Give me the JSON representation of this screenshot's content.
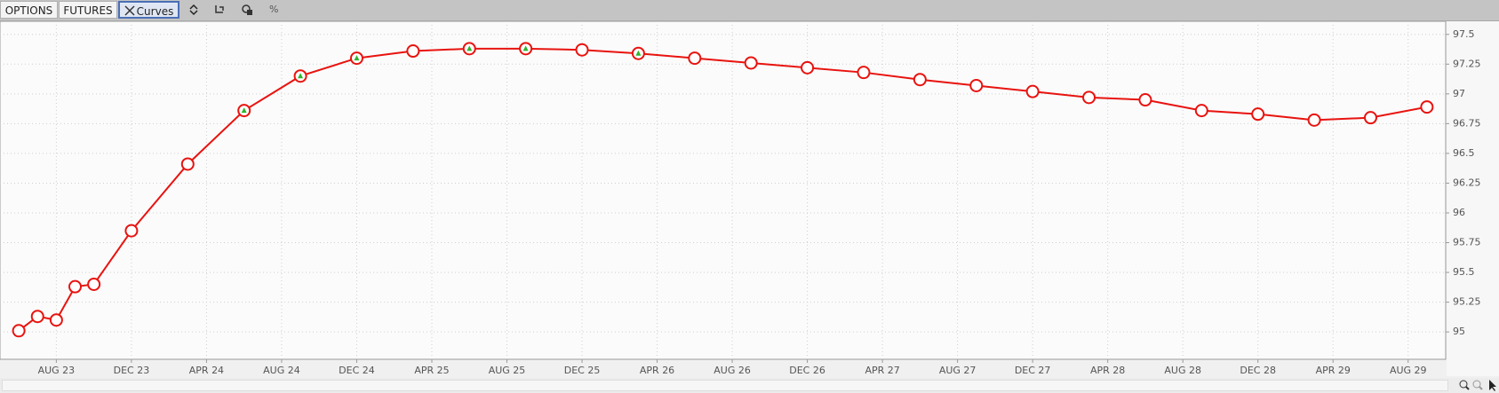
{
  "toolbar": {
    "buttons": [
      "OPTIONS",
      "FUTURES",
      "Curves"
    ],
    "percent": "%"
  },
  "chart_data": {
    "type": "line",
    "x": [
      "2023-06",
      "2023-07",
      "2023-08",
      "2023-09",
      "2023-10",
      "2023-12",
      "2024-03",
      "2024-06",
      "2024-09",
      "2024-12",
      "2025-03",
      "2025-06",
      "2025-09",
      "2025-12",
      "2026-03",
      "2026-06",
      "2026-09",
      "2026-12",
      "2027-03",
      "2027-06",
      "2027-09",
      "2027-12",
      "2028-03",
      "2028-06",
      "2028-09",
      "2028-12",
      "2029-03",
      "2029-06",
      "2029-09"
    ],
    "series": [
      {
        "color": "#e8130f",
        "values": [
          95.01,
          95.13,
          95.1,
          95.38,
          95.4,
          95.85,
          96.41,
          96.86,
          97.15,
          97.3,
          97.36,
          97.38,
          97.38,
          97.37,
          97.34,
          97.3,
          97.26,
          97.22,
          97.18,
          97.12,
          97.07,
          97.02,
          96.97,
          96.95,
          96.86,
          96.83,
          96.78,
          96.8,
          96.89
        ],
        "flagged": [
          false,
          false,
          false,
          false,
          false,
          false,
          false,
          true,
          true,
          true,
          false,
          true,
          true,
          false,
          true,
          false,
          false,
          false,
          false,
          false,
          false,
          false,
          false,
          false,
          false,
          false,
          false,
          false,
          false
        ]
      }
    ],
    "xlim": [
      "2023-05",
      "2029-10"
    ],
    "xticks": [
      {
        "value": "2023-08",
        "label": "AUG 23"
      },
      {
        "value": "2023-12",
        "label": "DEC 23"
      },
      {
        "value": "2024-04",
        "label": "APR 24"
      },
      {
        "value": "2024-08",
        "label": "AUG 24"
      },
      {
        "value": "2024-12",
        "label": "DEC 24"
      },
      {
        "value": "2025-04",
        "label": "APR 25"
      },
      {
        "value": "2025-08",
        "label": "AUG 25"
      },
      {
        "value": "2025-12",
        "label": "DEC 25"
      },
      {
        "value": "2026-04",
        "label": "APR 26"
      },
      {
        "value": "2026-08",
        "label": "AUG 26"
      },
      {
        "value": "2026-12",
        "label": "DEC 26"
      },
      {
        "value": "2027-04",
        "label": "APR 27"
      },
      {
        "value": "2027-08",
        "label": "AUG 27"
      },
      {
        "value": "2027-12",
        "label": "DEC 27"
      },
      {
        "value": "2028-04",
        "label": "APR 28"
      },
      {
        "value": "2028-08",
        "label": "AUG 28"
      },
      {
        "value": "2028-12",
        "label": "DEC 28"
      },
      {
        "value": "2029-04",
        "label": "APR 29"
      },
      {
        "value": "2029-08",
        "label": "AUG 29"
      }
    ],
    "ylim": [
      94.77,
      97.61
    ],
    "yticks": [
      95,
      95.25,
      95.5,
      95.75,
      96,
      96.25,
      96.5,
      96.75,
      97,
      97.25,
      97.5
    ],
    "grid": true,
    "y_axis_side": "right",
    "flag_color": "#2db52d"
  }
}
